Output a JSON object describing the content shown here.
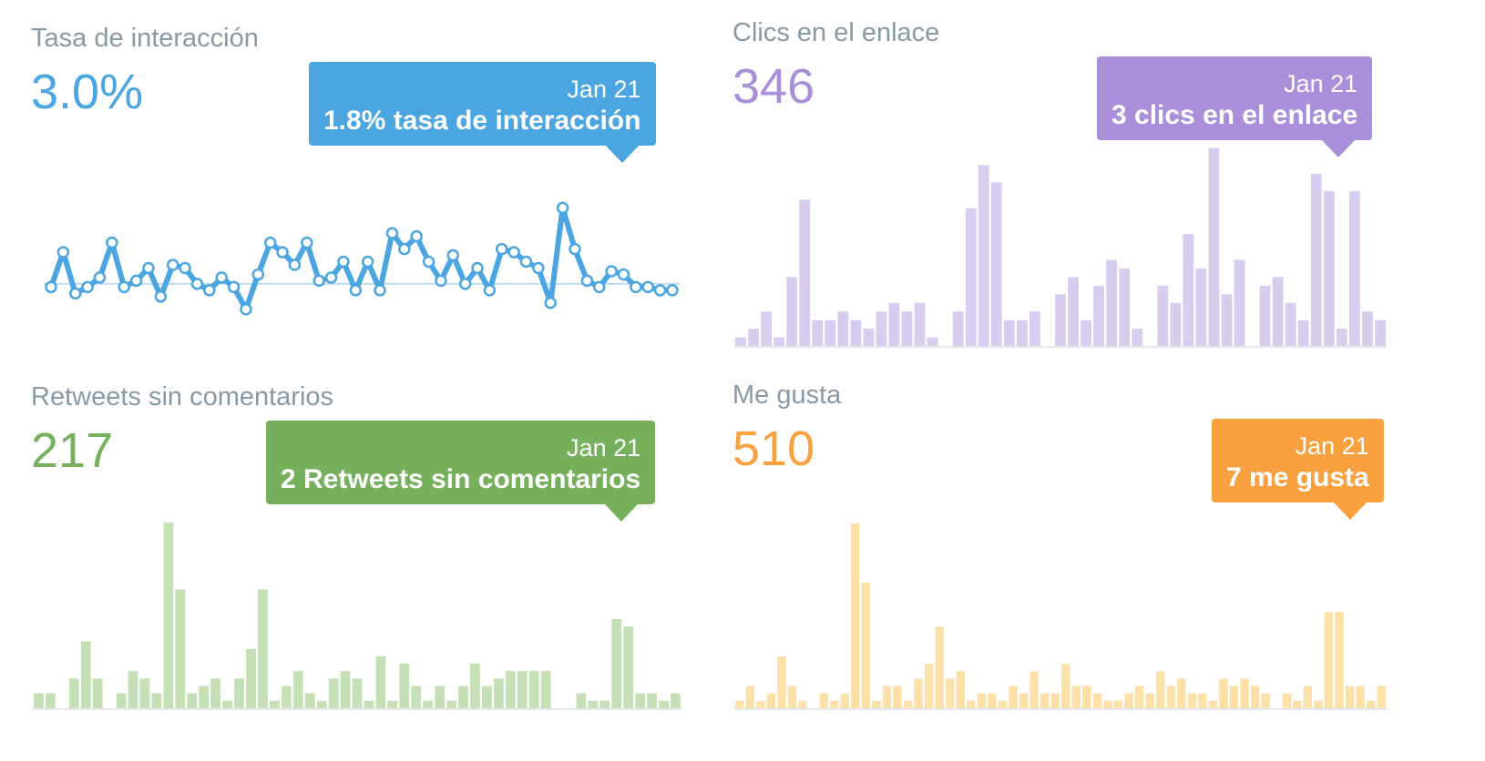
{
  "chart_data": [
    {
      "type": "line",
      "title": "Tasa de interacción",
      "headline": "3.0%",
      "color": "#4aa5e0",
      "average_line": 1.9,
      "tooltip": {
        "date": "Jan 21",
        "text": "1.8% tasa de interacción"
      },
      "ylim": [
        0,
        5
      ],
      "values": [
        1.8,
        2.9,
        1.6,
        1.8,
        2.1,
        3.2,
        1.8,
        2.0,
        2.4,
        1.5,
        2.5,
        2.4,
        1.9,
        1.7,
        2.1,
        1.8,
        1.1,
        2.2,
        3.2,
        2.9,
        2.5,
        3.2,
        2.0,
        2.1,
        2.6,
        1.7,
        2.6,
        1.7,
        3.5,
        3.0,
        3.4,
        2.6,
        2.0,
        2.8,
        1.9,
        2.4,
        1.7,
        3.0,
        2.9,
        2.6,
        2.4,
        1.3,
        4.3,
        3.0,
        2.0,
        1.8,
        2.3,
        2.2,
        1.8,
        1.8,
        1.7,
        1.7
      ]
    },
    {
      "type": "bar",
      "title": "Clics en el enlace",
      "headline": "346",
      "color": "#a98ed9",
      "bar_color": "#d9cdef",
      "tooltip": {
        "date": "Jan 21",
        "text": "3 clics en el enlace"
      },
      "ylim": [
        0,
        22
      ],
      "values": [
        1,
        2,
        4,
        1,
        8,
        17,
        3,
        3,
        4,
        3,
        2,
        4,
        5,
        4,
        5,
        1,
        0,
        4,
        16,
        21,
        19,
        3,
        3,
        4,
        0,
        6,
        8,
        3,
        7,
        10,
        9,
        2,
        0,
        7,
        5,
        13,
        9,
        23,
        6,
        10,
        0,
        7,
        8,
        5,
        3,
        20,
        18,
        2,
        18,
        4,
        3
      ]
    },
    {
      "type": "bar",
      "title": "Retweets sin comentarios",
      "headline": "217",
      "color": "#77b05d",
      "bar_color": "#c5e0b4",
      "tooltip": {
        "date": "Jan 21",
        "text": "2 Retweets sin comentarios"
      },
      "ylim": [
        0,
        25
      ],
      "values": [
        2,
        2,
        0,
        4,
        9,
        4,
        0,
        2,
        5,
        4,
        2,
        25,
        16,
        2,
        3,
        4,
        1,
        4,
        8,
        16,
        1,
        3,
        5,
        2,
        1,
        4,
        5,
        4,
        1,
        7,
        1,
        6,
        3,
        1,
        3,
        1,
        3,
        6,
        3,
        4,
        5,
        5,
        5,
        5,
        0,
        0,
        2,
        1,
        1,
        12,
        11,
        2,
        2,
        1,
        2
      ]
    },
    {
      "type": "bar",
      "title": "Me gusta",
      "headline": "510",
      "color": "#f9a03f",
      "bar_color": "#fde0a7",
      "tooltip": {
        "date": "Jan 21",
        "text": "7 me gusta"
      },
      "ylim": [
        0,
        25
      ],
      "values": [
        1,
        3,
        1,
        2,
        7,
        3,
        1,
        0,
        2,
        1,
        2,
        25,
        17,
        1,
        3,
        3,
        1,
        4,
        6,
        11,
        4,
        5,
        1,
        2,
        2,
        1,
        3,
        2,
        5,
        2,
        2,
        6,
        3,
        3,
        2,
        1,
        1,
        2,
        3,
        2,
        5,
        3,
        4,
        2,
        2,
        1,
        4,
        3,
        4,
        3,
        2,
        0,
        2,
        1,
        3,
        1,
        13,
        13,
        3,
        3,
        1,
        3
      ]
    }
  ]
}
